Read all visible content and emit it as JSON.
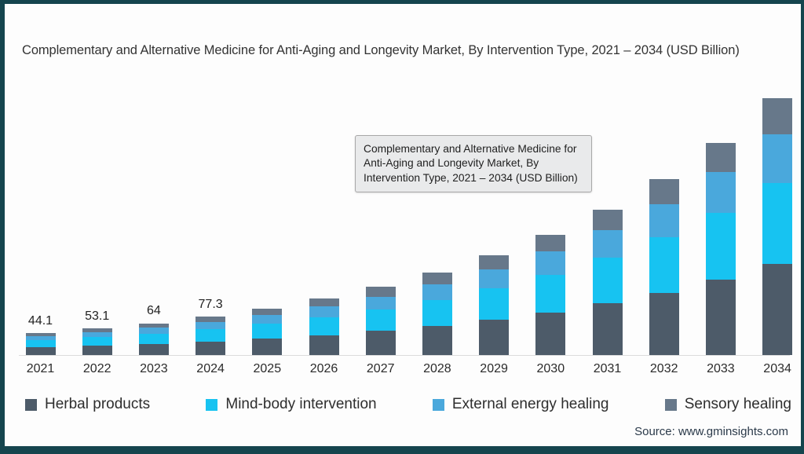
{
  "frame": {
    "border_color": "#15454e",
    "background_color": "#fdfdfd"
  },
  "title": "Complementary and Alternative Medicine for Anti-Aging and Longevity Market, By Intervention Type, 2021 – 2034 (USD Billion)",
  "tooltip": {
    "lines": [
      "Complementary and Alternative Medicine for",
      "Anti-Aging and Longevity Market, By",
      "Intervention Type, 2021 – 2034 (USD Billion)"
    ],
    "background_color": "#e9eaeb",
    "border_color": "#a8a8a8"
  },
  "source": "Source: www.gminsights.com",
  "axis": {
    "baseline_color": "#dcdcdc"
  },
  "chart_data": {
    "type": "bar",
    "stacked": true,
    "title": "Complementary and Alternative Medicine for Anti-Aging and Longevity Market, By Intervention Type, 2021 – 2034 (USD Billion)",
    "xlabel": "",
    "ylabel": "USD Billion",
    "grid": false,
    "legend_position": "bottom",
    "categories": [
      "2021",
      "2022",
      "2023",
      "2024",
      "2025",
      "2026",
      "2027",
      "2028",
      "2029",
      "2030",
      "2031",
      "2032",
      "2033",
      "2034"
    ],
    "series": [
      {
        "name": "Herbal products",
        "color": "#4d5b69",
        "values": [
          15.7,
          18.9,
          22.7,
          27.4,
          33.2,
          40.1,
          48.5,
          58.6,
          70.8,
          85.6,
          103.5,
          125.1,
          151.3,
          182.9
        ]
      },
      {
        "name": "Mind-body intervention",
        "color": "#17c3f1",
        "values": [
          13.9,
          16.7,
          20.2,
          24.4,
          29.4,
          35.6,
          43.0,
          52.0,
          62.8,
          76.0,
          91.9,
          111.0,
          134.3,
          162.3
        ]
      },
      {
        "name": "External energy healing",
        "color": "#4aa8dc",
        "values": [
          8.4,
          10.1,
          12.2,
          14.7,
          17.7,
          21.4,
          25.9,
          31.3,
          37.9,
          45.8,
          55.4,
          67.0,
          81.0,
          97.9
        ]
      },
      {
        "name": "Sensory healing",
        "color": "#67788a",
        "values": [
          6.1,
          7.4,
          8.9,
          10.8,
          13.1,
          15.8,
          19.1,
          23.1,
          28.0,
          33.8,
          40.8,
          49.4,
          59.6,
          72.2
        ]
      }
    ],
    "totals": [
      44.1,
      53.1,
      64,
      77.3,
      93.4,
      112.9,
      136.5,
      165.0,
      199.5,
      241.2,
      291.6,
      352.5,
      426.2,
      515.3
    ],
    "bar_labels": [
      "44.1",
      "53.1",
      "64",
      "77.3",
      "",
      "",
      "",
      "",
      "",
      "",
      "",
      "",
      "",
      ""
    ]
  }
}
